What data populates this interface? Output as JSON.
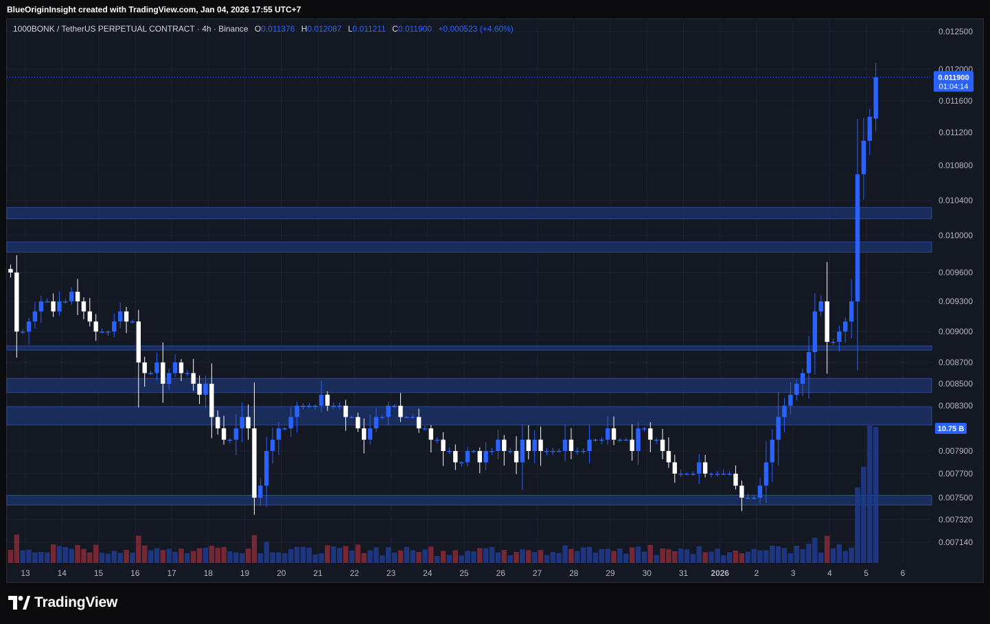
{
  "header": {
    "creator": "BlueOriginInsight created with TradingView.com, Jan 04, 2026 17:55 UTC+7"
  },
  "legend": {
    "symbol": "1000BONK / TetherUS PERPETUAL CONTRACT · 4h · Binance",
    "open_label": "O",
    "open": "0.011376",
    "high_label": "H",
    "high": "0.012087",
    "low_label": "L",
    "low": "0.011211",
    "close_label": "C",
    "close": "0.011900",
    "change": "+0.000523 (+4.60%)"
  },
  "price_marker": {
    "price": "0.011900",
    "countdown": "01:04:14"
  },
  "volume_marker": {
    "label": "10.75 B"
  },
  "branding": {
    "logo_text": "TradingView"
  },
  "colors": {
    "up": "#2962ff",
    "down": "#ffffff",
    "volume_up": "#1e3a8a",
    "volume_down": "#7f2a35",
    "zone": "#1b3064",
    "background": "#141823"
  },
  "chart_data": {
    "type": "candlestick",
    "interval": "4h",
    "y_ticks": [
      "0.012500",
      "0.012000",
      "0.011600",
      "0.011200",
      "0.010800",
      "0.010400",
      "0.010000",
      "0.009600",
      "0.009300",
      "0.009000",
      "0.008700",
      "0.008500",
      "0.008300",
      "0.007900",
      "0.007700",
      "0.007500",
      "0.007320",
      "0.007140"
    ],
    "x_ticks": [
      {
        "label": "13",
        "day": 0
      },
      {
        "label": "14",
        "day": 1
      },
      {
        "label": "15",
        "day": 2
      },
      {
        "label": "16",
        "day": 3
      },
      {
        "label": "17",
        "day": 4
      },
      {
        "label": "18",
        "day": 5
      },
      {
        "label": "19",
        "day": 6
      },
      {
        "label": "20",
        "day": 7
      },
      {
        "label": "21",
        "day": 8
      },
      {
        "label": "22",
        "day": 9
      },
      {
        "label": "23",
        "day": 10
      },
      {
        "label": "24",
        "day": 11
      },
      {
        "label": "25",
        "day": 12
      },
      {
        "label": "26",
        "day": 13
      },
      {
        "label": "27",
        "day": 14
      },
      {
        "label": "28",
        "day": 15
      },
      {
        "label": "29",
        "day": 16
      },
      {
        "label": "30",
        "day": 17
      },
      {
        "label": "31",
        "day": 18
      },
      {
        "label": "2026",
        "day": 19
      },
      {
        "label": "2",
        "day": 20
      },
      {
        "label": "3",
        "day": 21
      },
      {
        "label": "4",
        "day": 22
      },
      {
        "label": "5",
        "day": 23
      },
      {
        "label": "6",
        "day": 24
      }
    ],
    "zones": [
      {
        "top": 0.01032,
        "bottom": 0.01019
      },
      {
        "top": 0.00993,
        "bottom": 0.00982
      },
      {
        "top": 0.00886,
        "bottom": 0.00882
      },
      {
        "top": 0.00855,
        "bottom": 0.00842
      },
      {
        "top": 0.00829,
        "bottom": 0.00813
      },
      {
        "top": 0.00752,
        "bottom": 0.00744
      }
    ],
    "close_path": [
      0.0096,
      0.009,
      0.009,
      0.0091,
      0.0092,
      0.0093,
      0.0093,
      0.0092,
      0.0093,
      0.0093,
      0.0094,
      0.0093,
      0.0092,
      0.0091,
      0.009,
      0.009,
      0.009,
      0.0091,
      0.0092,
      0.0091,
      0.0091,
      0.0087,
      0.0086,
      0.0086,
      0.0087,
      0.0085,
      0.0086,
      0.0087,
      0.0086,
      0.0086,
      0.0085,
      0.0084,
      0.0085,
      0.0082,
      0.0081,
      0.008,
      0.008,
      0.0081,
      0.0082,
      0.0081,
      0.0075,
      0.0076,
      0.0079,
      0.008,
      0.0081,
      0.0081,
      0.0082,
      0.0083,
      0.0083,
      0.0083,
      0.0083,
      0.0084,
      0.0083,
      0.0083,
      0.0083,
      0.0082,
      0.0082,
      0.0081,
      0.008,
      0.0081,
      0.0082,
      0.0082,
      0.0083,
      0.0083,
      0.0082,
      0.0082,
      0.0082,
      0.0081,
      0.0081,
      0.008,
      0.008,
      0.0079,
      0.0079,
      0.0078,
      0.0078,
      0.0079,
      0.0079,
      0.0078,
      0.0079,
      0.0079,
      0.008,
      0.0079,
      0.0079,
      0.0078,
      0.008,
      0.0079,
      0.008,
      0.0079,
      0.0079,
      0.0079,
      0.0079,
      0.008,
      0.0079,
      0.0079,
      0.0079,
      0.008,
      0.008,
      0.008,
      0.0081,
      0.008,
      0.008,
      0.008,
      0.0079,
      0.0081,
      0.0081,
      0.008,
      0.008,
      0.0079,
      0.0078,
      0.0077,
      0.0077,
      0.0077,
      0.0077,
      0.0078,
      0.0077,
      0.0077,
      0.0077,
      0.0077,
      0.0077,
      0.0076,
      0.0075,
      0.0075,
      0.0075,
      0.0076,
      0.0078,
      0.008,
      0.0082,
      0.0083,
      0.0084,
      0.0085,
      0.0086,
      0.0088,
      0.0092,
      0.0093,
      0.0089,
      0.0089,
      0.009,
      0.0091,
      0.0093,
      0.0107,
      0.0111,
      0.0114,
      0.0119
    ],
    "highlight_candles": [
      {
        "open": 0.011376,
        "high": 0.012087,
        "low": 0.011211,
        "close": 0.0119
      }
    ],
    "last_price": 0.0119
  }
}
